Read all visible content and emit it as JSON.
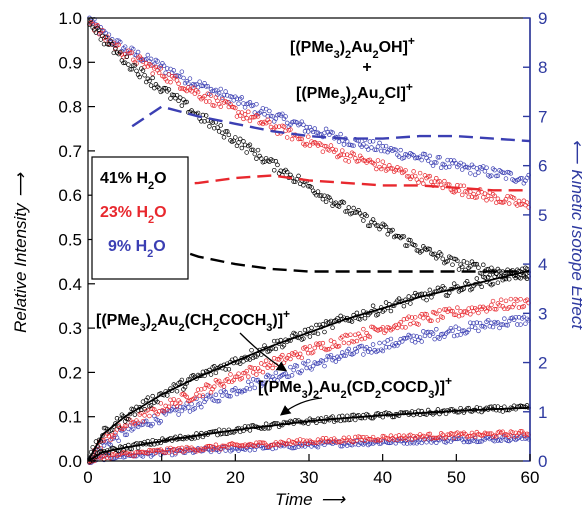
{
  "chart_data": {
    "type": "scatter",
    "xlabel": "Time",
    "ylabel_left": "Relative Intensity",
    "ylabel_right": "Kinetic Isotope Effect",
    "xlim": [
      0,
      60
    ],
    "ylim_left": [
      0,
      1.0
    ],
    "ylim_right": [
      0,
      9
    ],
    "x_ticks": [
      "0",
      "10",
      "20",
      "30",
      "40",
      "50",
      "60"
    ],
    "y_left_ticks": [
      "0.0",
      "0.1",
      "0.2",
      "0.3",
      "0.4",
      "0.5",
      "0.6",
      "0.7",
      "0.8",
      "0.9",
      "1.0"
    ],
    "y_right_ticks": [
      "0",
      "1",
      "2",
      "3",
      "4",
      "5",
      "6",
      "7",
      "8",
      "9"
    ],
    "colors": {
      "h41": "#000000",
      "h23": "#E8282E",
      "h9": "#3B3FB3",
      "axis_right": "#2E3AA0"
    },
    "legend": [
      {
        "label": "41% H",
        "sub": "2",
        "tail": "O",
        "color": "#000000"
      },
      {
        "label": "23% H",
        "sub": "2",
        "tail": "O",
        "color": "#E8282E"
      },
      {
        "label": "9% H",
        "sub": "2",
        "tail": "O",
        "color": "#3B3FB3"
      }
    ],
    "annotations": {
      "oh": {
        "pre": "[(PMe",
        "s1": "3",
        "mid": ")",
        "s2": "2",
        "tail": "Au",
        "s3": "2",
        "end": "OH]",
        "sup": "+"
      },
      "plus": "+",
      "cl": {
        "pre": "[(PMe",
        "s1": "3",
        "mid": ")",
        "s2": "2",
        "tail": "Au",
        "s3": "2",
        "end": "Cl]",
        "sup": "+"
      },
      "ch": {
        "pre": "[(PMe",
        "s1": "3",
        "mid": ")",
        "s2": "2",
        "t1": "Au",
        "s3": "2",
        "t2": "(CH",
        "s4": "2",
        "t3": "COCH",
        "s5": "3",
        "end": ")]",
        "sup": "+"
      },
      "cd": {
        "pre": "[(PMe",
        "s1": "3",
        "mid": ")",
        "s2": "2",
        "t1": "Au",
        "s3": "2",
        "t2": "(CD",
        "s4": "2",
        "t3": "COCD",
        "s5": "3",
        "end": ")]",
        "sup": "+"
      }
    },
    "series": [
      {
        "name": "41% H2O",
        "color": "#000000",
        "reactant": {
          "x": [
            0,
            2,
            5,
            10,
            15,
            20,
            25,
            30,
            35,
            40,
            45,
            50,
            55,
            60
          ],
          "y": [
            1.0,
            0.955,
            0.905,
            0.84,
            0.78,
            0.725,
            0.67,
            0.62,
            0.57,
            0.525,
            0.48,
            0.445,
            0.43,
            0.42
          ]
        },
        "product_h": {
          "x": [
            0,
            2,
            5,
            10,
            15,
            20,
            25,
            30,
            35,
            40,
            45,
            50,
            55,
            60
          ],
          "y": [
            0.0,
            0.06,
            0.1,
            0.15,
            0.19,
            0.225,
            0.26,
            0.29,
            0.32,
            0.345,
            0.37,
            0.39,
            0.41,
            0.43
          ]
        },
        "product_d": {
          "x": [
            0,
            2,
            5,
            10,
            15,
            20,
            25,
            30,
            35,
            40,
            45,
            50,
            55,
            60
          ],
          "y": [
            0.0,
            0.02,
            0.03,
            0.045,
            0.058,
            0.07,
            0.08,
            0.09,
            0.097,
            0.103,
            0.108,
            0.113,
            0.117,
            0.12
          ]
        },
        "kie": {
          "x": [
            6,
            10,
            15,
            20,
            25,
            30,
            35,
            40,
            45,
            50,
            55,
            60
          ],
          "y": [
            4.7,
            4.4,
            4.15,
            4.0,
            3.9,
            3.85,
            3.85,
            3.85,
            3.85,
            3.85,
            3.85,
            3.85
          ]
        }
      },
      {
        "name": "23% H2O",
        "color": "#E8282E",
        "reactant": {
          "x": [
            0,
            2,
            5,
            10,
            15,
            20,
            25,
            30,
            35,
            40,
            45,
            50,
            55,
            60
          ],
          "y": [
            1.0,
            0.96,
            0.92,
            0.875,
            0.83,
            0.79,
            0.755,
            0.72,
            0.69,
            0.665,
            0.64,
            0.615,
            0.595,
            0.575
          ]
        },
        "product_h": {
          "x": [
            0,
            2,
            5,
            10,
            15,
            20,
            25,
            30,
            35,
            40,
            45,
            50,
            55,
            60
          ],
          "y": [
            0.0,
            0.045,
            0.08,
            0.12,
            0.155,
            0.19,
            0.22,
            0.25,
            0.275,
            0.3,
            0.32,
            0.335,
            0.35,
            0.36
          ]
        },
        "product_d": {
          "x": [
            0,
            2,
            5,
            10,
            15,
            20,
            25,
            30,
            35,
            40,
            45,
            50,
            55,
            60
          ],
          "y": [
            0.0,
            0.01,
            0.015,
            0.022,
            0.028,
            0.034,
            0.039,
            0.044,
            0.048,
            0.052,
            0.055,
            0.058,
            0.06,
            0.062
          ]
        },
        "kie": {
          "x": [
            6,
            10,
            15,
            20,
            25,
            30,
            35,
            40,
            45,
            50,
            55,
            60
          ],
          "y": [
            5.7,
            5.6,
            5.65,
            5.75,
            5.8,
            5.7,
            5.65,
            5.6,
            5.6,
            5.55,
            5.5,
            5.5
          ]
        }
      },
      {
        "name": "9% H2O",
        "color": "#3B3FB3",
        "reactant": {
          "x": [
            0,
            2,
            5,
            10,
            15,
            20,
            25,
            30,
            35,
            40,
            45,
            50,
            55,
            60
          ],
          "y": [
            1.0,
            0.965,
            0.93,
            0.89,
            0.85,
            0.815,
            0.78,
            0.75,
            0.725,
            0.705,
            0.685,
            0.665,
            0.65,
            0.635
          ]
        },
        "product_h": {
          "x": [
            0,
            2,
            5,
            10,
            15,
            20,
            25,
            30,
            35,
            40,
            45,
            50,
            55,
            60
          ],
          "y": [
            0.0,
            0.035,
            0.065,
            0.1,
            0.13,
            0.16,
            0.19,
            0.215,
            0.24,
            0.26,
            0.28,
            0.295,
            0.31,
            0.32
          ]
        },
        "product_d": {
          "x": [
            0,
            2,
            5,
            10,
            15,
            20,
            25,
            30,
            35,
            40,
            45,
            50,
            55,
            60
          ],
          "y": [
            0.0,
            0.008,
            0.012,
            0.018,
            0.023,
            0.028,
            0.032,
            0.036,
            0.04,
            0.043,
            0.046,
            0.048,
            0.05,
            0.052
          ]
        },
        "kie": {
          "x": [
            6,
            8,
            10,
            15,
            20,
            25,
            30,
            35,
            40,
            45,
            50,
            55,
            60
          ],
          "y": [
            6.8,
            7.0,
            7.2,
            7.0,
            6.85,
            6.7,
            6.6,
            6.55,
            6.55,
            6.6,
            6.6,
            6.55,
            6.5
          ]
        }
      }
    ]
  }
}
